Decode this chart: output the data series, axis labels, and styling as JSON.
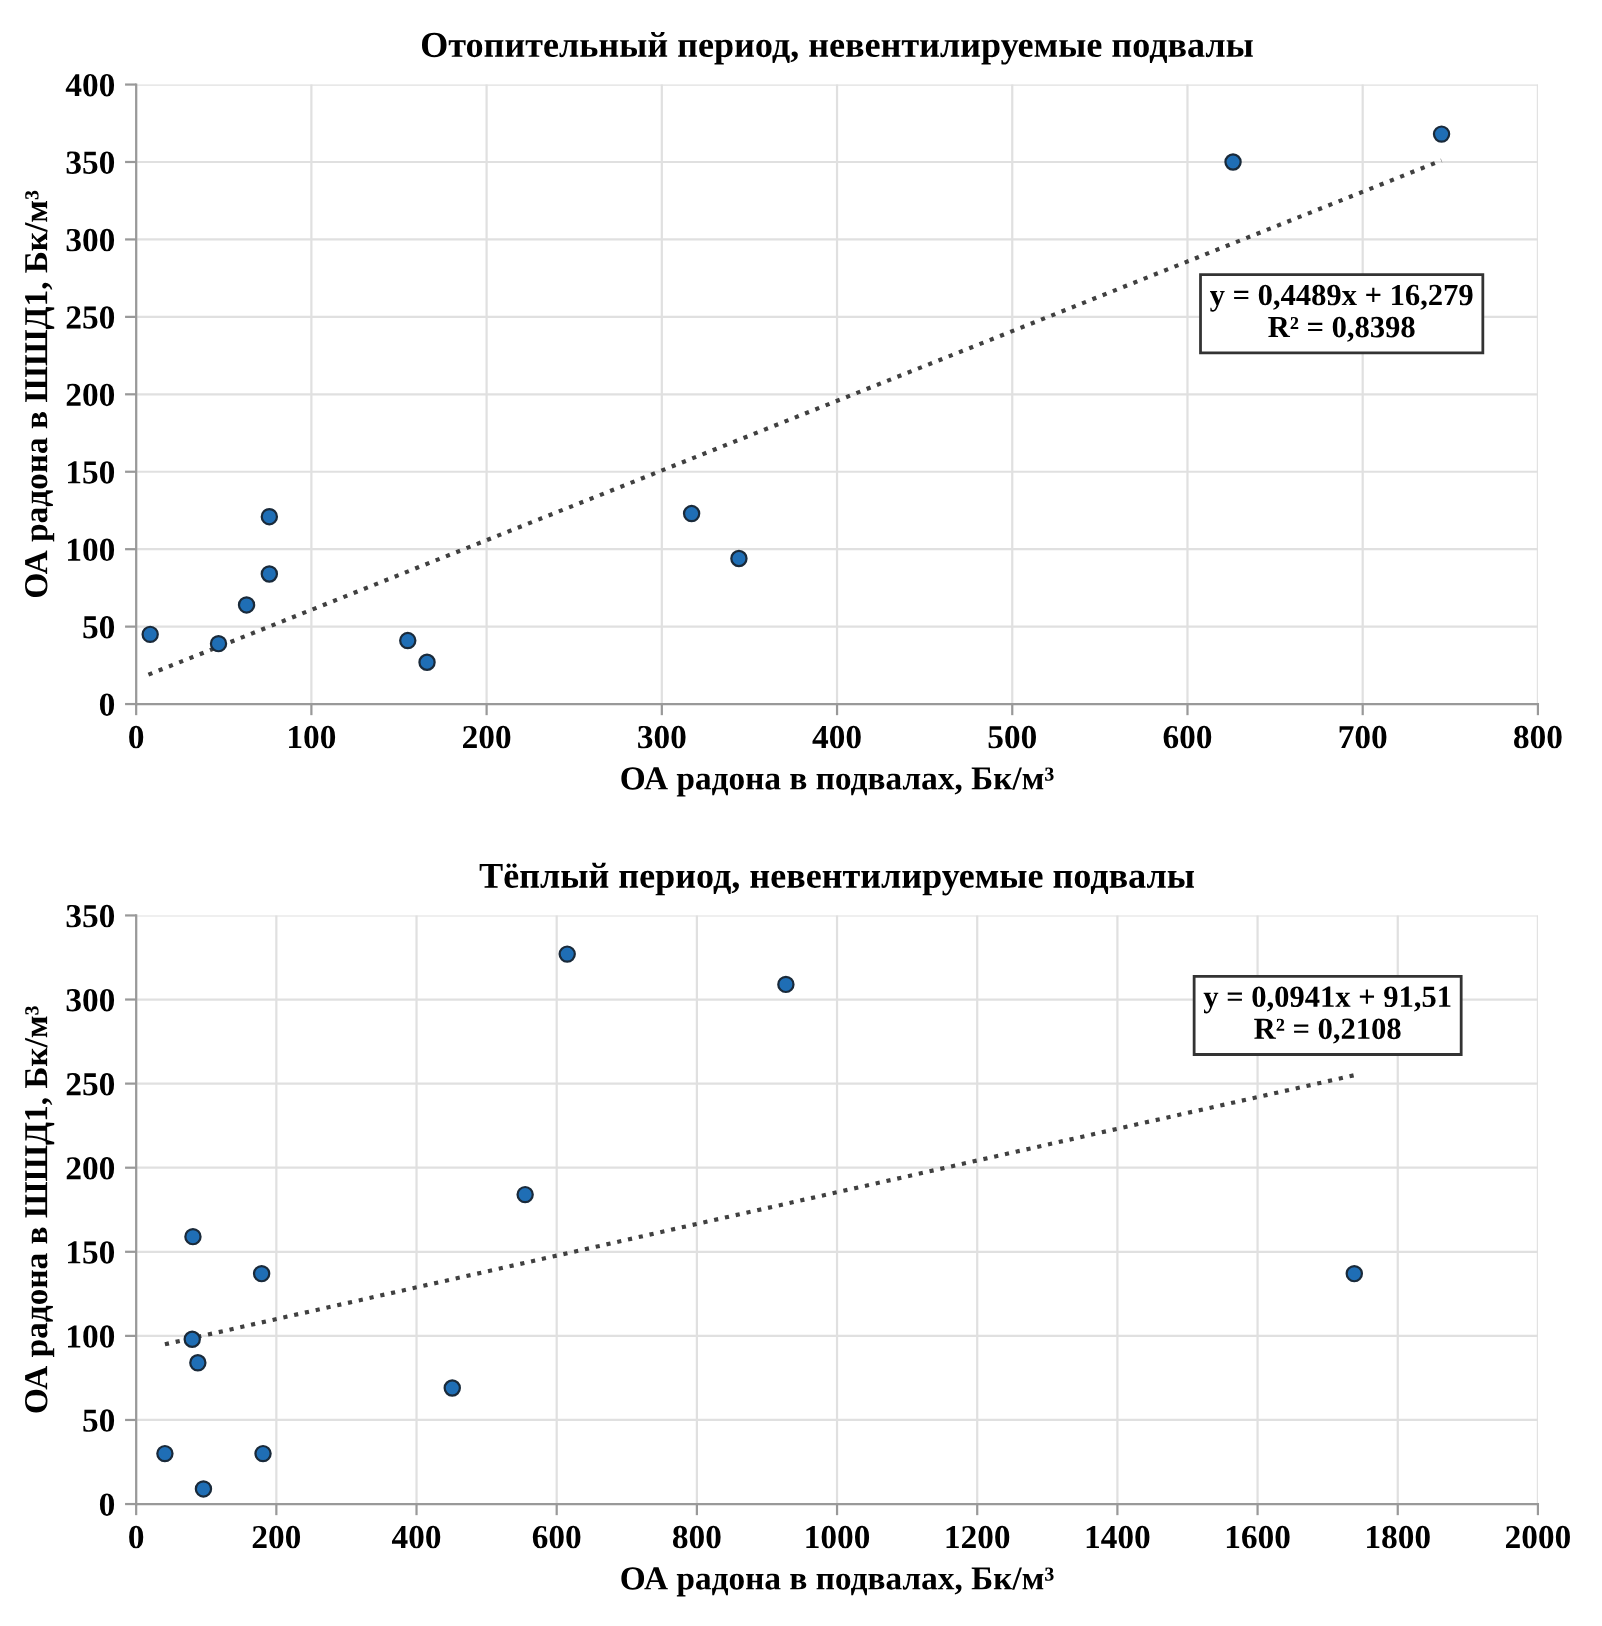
{
  "chart_data": [
    {
      "type": "scatter",
      "title": "Отопительный период, невентилируемые подвалы",
      "xlabel": "ОА радона в подвалах, Бк/м³",
      "ylabel": "ОА радона в ШШД1, Бк/м³",
      "xlim": [
        0,
        800
      ],
      "xticks": [
        0,
        100,
        200,
        300,
        400,
        500,
        600,
        700,
        800
      ],
      "ylim": [
        0,
        400
      ],
      "yticks": [
        0,
        50,
        100,
        150,
        200,
        250,
        300,
        350,
        400
      ],
      "grid": true,
      "marker": "circle",
      "annotations": [
        "y = 0,4489x + 16,279\nR² = 0,8398"
      ],
      "series": [
        {
          "color": "#1f6eb5",
          "x": [
            8,
            47,
            63,
            76,
            76,
            155,
            166,
            317,
            344,
            626,
            745
          ],
          "values": [
            45,
            39,
            64,
            84,
            121,
            41,
            27,
            123,
            94,
            350,
            368
          ]
        },
        {
          "type": "line",
          "color": "#404040",
          "line_style": "dotted",
          "marker": "none",
          "x": [
            7,
            745
          ],
          "values": [
            19,
            351
          ]
        }
      ]
    },
    {
      "type": "scatter",
      "title": "Тёплый период, невентилируемые подвалы",
      "xlabel": "ОА радона в подвалах, Бк/м³",
      "ylabel": "ОА радона в ШШД1, Бк/м³",
      "xlim": [
        0,
        2000
      ],
      "xticks": [
        0,
        200,
        400,
        600,
        800,
        1000,
        1200,
        1400,
        1600,
        1800,
        2000
      ],
      "ylim": [
        0,
        350
      ],
      "yticks": [
        0,
        50,
        100,
        150,
        200,
        250,
        300,
        350
      ],
      "grid": true,
      "marker": "circle",
      "annotations": [
        "y = 0,0941x + 91,51\nR² = 0,2108"
      ],
      "series": [
        {
          "color": "#1f6eb5",
          "x": [
            41,
            81,
            80,
            88,
            96,
            179,
            181,
            451,
            555,
            615,
            927,
            1738
          ],
          "values": [
            30,
            159,
            98,
            84,
            9,
            137,
            30,
            69,
            184,
            327,
            309,
            137
          ]
        },
        {
          "type": "line",
          "color": "#404040",
          "line_style": "dotted",
          "marker": "none",
          "x": [
            41,
            1738
          ],
          "values": [
            95,
            255
          ]
        }
      ]
    }
  ]
}
